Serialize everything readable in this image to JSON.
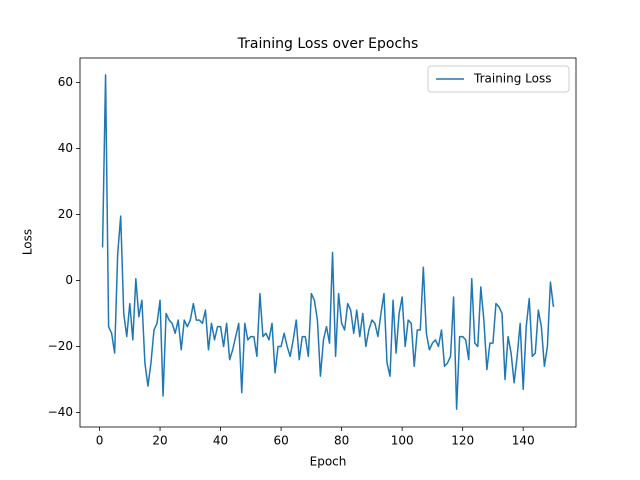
{
  "chart_data": {
    "type": "line",
    "title": "Training Loss over Epochs",
    "x_label": "Epoch",
    "y_label": "Loss",
    "x": [
      1,
      2,
      3,
      4,
      5,
      6,
      7,
      8,
      9,
      10,
      11,
      12,
      13,
      14,
      15,
      16,
      17,
      18,
      19,
      20,
      21,
      22,
      23,
      24,
      25,
      26,
      27,
      28,
      29,
      30,
      31,
      32,
      33,
      34,
      35,
      36,
      37,
      38,
      39,
      40,
      41,
      42,
      43,
      44,
      45,
      46,
      47,
      48,
      49,
      50,
      51,
      52,
      53,
      54,
      55,
      56,
      57,
      58,
      59,
      60,
      61,
      62,
      63,
      64,
      65,
      66,
      67,
      68,
      69,
      70,
      71,
      72,
      73,
      74,
      75,
      76,
      77,
      78,
      79,
      80,
      81,
      82,
      83,
      84,
      85,
      86,
      87,
      88,
      89,
      90,
      91,
      92,
      93,
      94,
      95,
      96,
      97,
      98,
      99,
      100,
      101,
      102,
      103,
      104,
      105,
      106,
      107,
      108,
      109,
      110,
      111,
      112,
      113,
      114,
      115,
      116,
      117,
      118,
      119,
      120,
      121,
      122,
      123,
      124,
      125,
      126,
      127,
      128,
      129,
      130,
      131,
      132,
      133,
      134,
      135,
      136,
      137,
      138,
      139,
      140,
      141,
      142,
      143,
      144,
      145,
      146,
      147,
      148,
      149,
      150
    ],
    "series": [
      {
        "name": "Training Loss",
        "color": "#1f77b4",
        "values": [
          10,
          62.3,
          -14,
          -16,
          -22,
          8,
          19.5,
          -10,
          -17,
          -7,
          -18,
          0.5,
          -11,
          -6,
          -25,
          -32,
          -25,
          -15,
          -13,
          -6,
          -35,
          -10,
          -12,
          -13,
          -16,
          -12,
          -21,
          -12,
          -14,
          -12,
          -7,
          -12,
          -12,
          -13,
          -9,
          -21,
          -13,
          -18,
          -14,
          -14,
          -20,
          -13,
          -24,
          -21,
          -17,
          -13,
          -34,
          -13,
          -18,
          -17,
          -17,
          -23,
          -4,
          -17,
          -16,
          -18,
          -13,
          -28,
          -20,
          -20,
          -16,
          -20,
          -23,
          -18,
          -12,
          -24,
          -17,
          -17,
          -23,
          -4,
          -6,
          -12,
          -29,
          -18,
          -14,
          -19,
          8.5,
          -23,
          -4,
          -13,
          -15,
          -7,
          -9,
          -16,
          -9,
          -17,
          -10,
          -20,
          -15,
          -12,
          -13,
          -17,
          -10,
          -4,
          -25,
          -29,
          -6,
          -22,
          -10,
          -5,
          -20,
          -12,
          -13,
          -26,
          -15,
          -15,
          4,
          -16,
          -21,
          -19,
          -18,
          -20,
          -15,
          -26,
          -25,
          -23,
          -5,
          -39,
          -17,
          -17,
          -18,
          -24,
          0.5,
          -19,
          -20,
          -2,
          -12,
          -27,
          -19,
          -19,
          -7,
          -8,
          -10,
          -30,
          -17,
          -22,
          -31,
          -23,
          -13,
          -33,
          -14,
          -5.5,
          -23,
          -22,
          -9,
          -14,
          -26,
          -20,
          -0.5,
          -8
        ]
      }
    ],
    "xlim": [
      -6.45,
      157.45
    ],
    "ylim": [
      -44.4,
      67.4
    ],
    "xticks": [
      0,
      20,
      40,
      60,
      80,
      100,
      120,
      140
    ],
    "yticks": [
      {
        "value": -40,
        "label": "−40"
      },
      {
        "value": -20,
        "label": "−20"
      },
      0,
      20,
      40,
      60
    ],
    "legend": "upper right"
  }
}
